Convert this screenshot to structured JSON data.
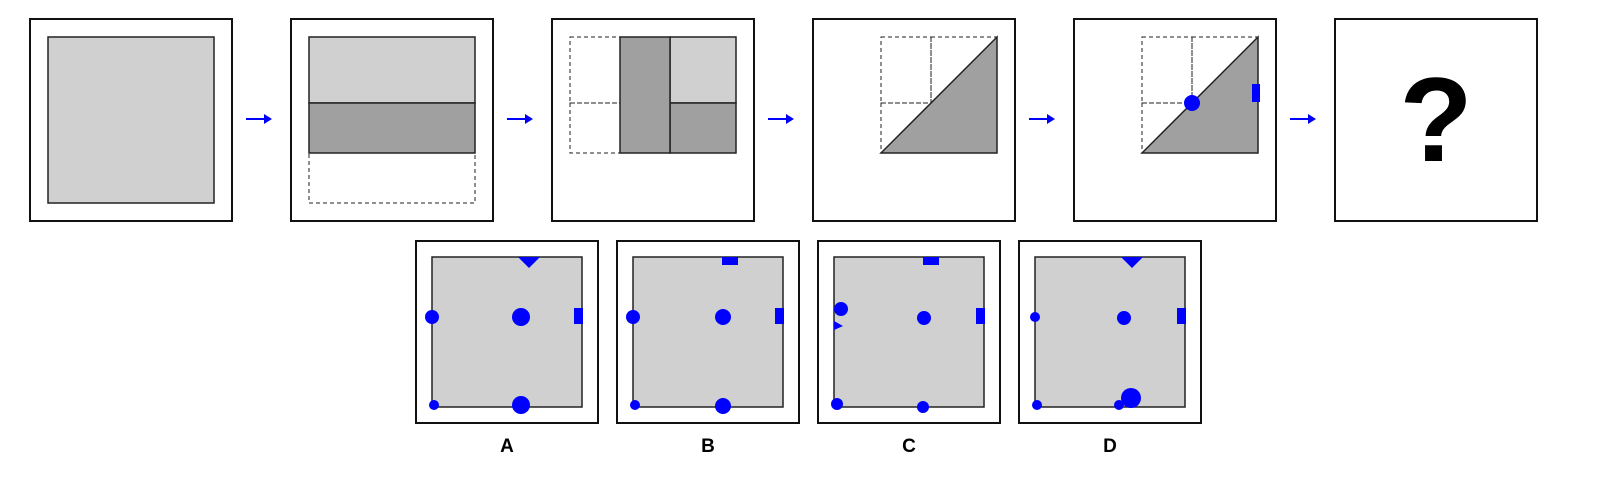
{
  "colors": {
    "paper": "#d0d0d0",
    "fold": "#a0a0a0",
    "hole": "#0000ff",
    "arrow": "#0000ff",
    "border": "#111111"
  },
  "question_mark": "?",
  "arrow_glyph": "→",
  "options": [
    {
      "label": "A"
    },
    {
      "label": "B"
    },
    {
      "label": "C"
    },
    {
      "label": "D"
    }
  ]
}
